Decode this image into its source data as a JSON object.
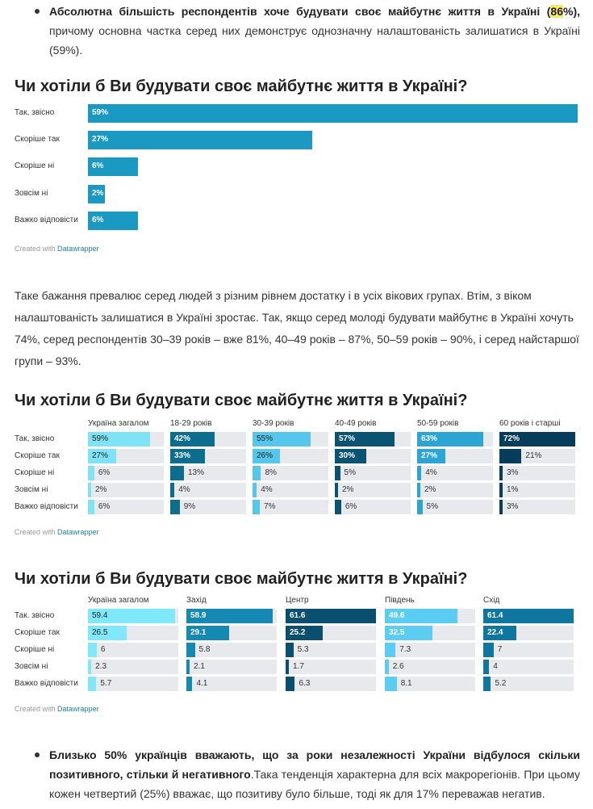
{
  "intro_bullet": {
    "bold_text": "Абсолютна більшість респондентів хоче будувати своє майбутнє життя в Україні (",
    "highlight": "86",
    "bold_tail": "%),",
    "rest": " причому основна частка серед них демонструє однозначну налаштованість залишатися в Україні (59%)."
  },
  "chart1": {
    "title": "Чи хотіли б Ви будувати своє майбутнє життя в Україні?",
    "credit_prefix": "Created with ",
    "credit_link": "Datawrapper",
    "chart_data": {
      "type": "bar",
      "categories": [
        "Так, звісно",
        "Скоріше так",
        "Скоріше ні",
        "Зовсім ні",
        "Важко відповісти"
      ],
      "values": [
        59,
        27,
        6,
        2,
        6
      ],
      "value_labels": [
        "59%",
        "27%",
        "6%",
        "2%",
        "6%"
      ],
      "color": "#1a9ac3"
    }
  },
  "paragraph": "Таке бажання превалює серед людей з різним рівнем достатку і в усіх вікових групах. Втім, з віком налаштованість залишатися в Україні зростає. Так, якщо серед молоді будувати майбутнє в Україні хочуть 74%, серед респондентів 30–39 років – вже 81%, 40–49 років – 87%, 50–59 років – 90%, і серед найстаршої групи – 93%.",
  "chart2": {
    "title": "Чи хотіли б Ви будувати своє майбутнє життя в Україні?",
    "credit_prefix": "Created with ",
    "credit_link": "Datawrapper",
    "chart_data": {
      "type": "bar",
      "categories": [
        "Так, звісно",
        "Скоріше так",
        "Скоріше ні",
        "Зовсім ні",
        "Важко відповісти"
      ],
      "max": 72,
      "series": [
        {
          "name": "Україна загалом",
          "values": [
            59,
            27,
            6,
            2,
            6
          ],
          "labels": [
            "59%",
            "27%",
            "6%",
            "2%",
            "6%"
          ],
          "color": "#7fe3f5"
        },
        {
          "name": "18-29 років",
          "values": [
            42,
            33,
            13,
            4,
            9
          ],
          "labels": [
            "42%",
            "33%",
            "13%",
            "4%",
            "9%"
          ],
          "color": "#0d6d8f"
        },
        {
          "name": "30-39 років",
          "values": [
            55,
            26,
            8,
            4,
            7
          ],
          "labels": [
            "55%",
            "26%",
            "8%",
            "4%",
            "7%"
          ],
          "color": "#56c7ec"
        },
        {
          "name": "40-49 років",
          "values": [
            57,
            30,
            5,
            2,
            6
          ],
          "labels": [
            "57%",
            "30%",
            "5%",
            "2%",
            "6%"
          ],
          "color": "#0a5373"
        },
        {
          "name": "50-59 років",
          "values": [
            63,
            27,
            4,
            2,
            5
          ],
          "labels": [
            "63%",
            "27%",
            "4%",
            "2%",
            "5%"
          ],
          "color": "#2ba6d4"
        },
        {
          "name": "60 років і старші",
          "values": [
            72,
            21,
            3,
            1,
            3
          ],
          "labels": [
            "72%",
            "21%",
            "3%",
            "1%",
            "3%"
          ],
          "color": "#053d5a"
        }
      ]
    }
  },
  "chart3": {
    "title": "Чи хотіли б Ви будувати своє майбутнє життя в Україні?",
    "credit_prefix": "Created with ",
    "credit_link": "Datawrapper",
    "chart_data": {
      "type": "bar",
      "categories": [
        "Так. звісно",
        "Скоріше так",
        "Скоріше ні",
        "Зовсім ні",
        "Важко відповісти"
      ],
      "max": 61.6,
      "series": [
        {
          "name": "Україна загалом",
          "values": [
            59.4,
            26.5,
            6,
            2.3,
            5.7
          ],
          "labels": [
            "59.4",
            "26.5",
            "6",
            "2.3",
            "5.7"
          ],
          "color": "#7fe8fa"
        },
        {
          "name": "Захід",
          "values": [
            58.9,
            29.1,
            5.8,
            2.1,
            4.1
          ],
          "labels": [
            "58.9",
            "29.1",
            "5.8",
            "2.1",
            "4.1"
          ],
          "color": "#1489b3"
        },
        {
          "name": "Центр",
          "values": [
            61.6,
            25.2,
            5.3,
            1.7,
            6.3
          ],
          "labels": [
            "61.6",
            "25.2",
            "5.3",
            "1.7",
            "6.3"
          ],
          "color": "#0a4f6e"
        },
        {
          "name": "Південь",
          "values": [
            49.6,
            32.5,
            7.3,
            2.6,
            8.1
          ],
          "labels": [
            "49.6",
            "32.5",
            "7.3",
            "2.6",
            "8.1"
          ],
          "color": "#5ccdf2"
        },
        {
          "name": "Схід",
          "values": [
            61.4,
            22.4,
            7,
            4,
            5.2
          ],
          "labels": [
            "61.4",
            "22.4",
            "7",
            "4",
            "5.2"
          ],
          "color": "#0f76a0"
        }
      ]
    }
  },
  "bottom_bullet": {
    "bold_text": "Близько 50% українців вважають, що за роки незалежності України відбулося скільки позитивного, стільки й негативного",
    "rest": ".Така тенденція характерна для всіх макрорегіонів. При цьому кожен четвертий (25%) вважає, що позитиву було більше, тоді як для 17% переважав негатив."
  }
}
